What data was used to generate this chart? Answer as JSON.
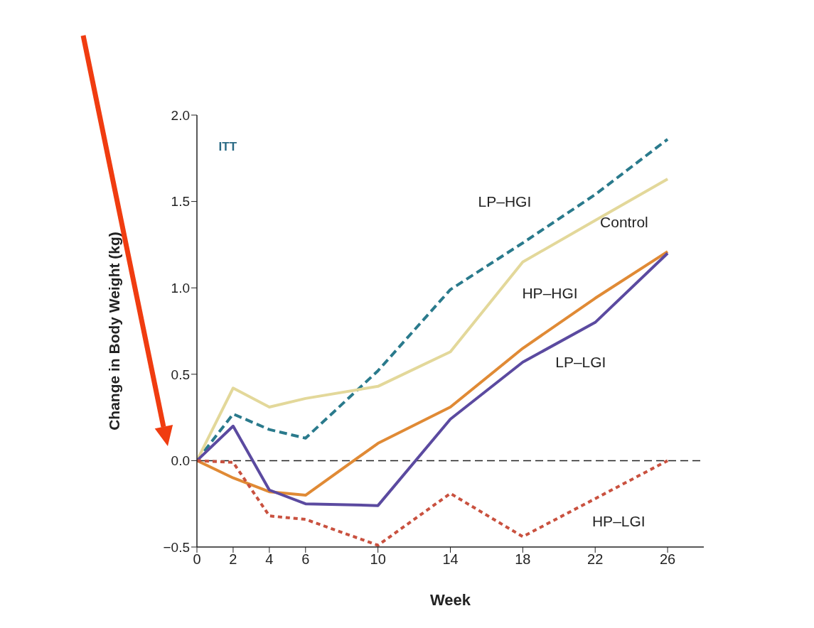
{
  "chart_data": {
    "type": "line",
    "xlabel": "Week",
    "ylabel": "Change in Body Weight (kg)",
    "annotations": [
      "ITT"
    ],
    "x": [
      0,
      2,
      4,
      6,
      10,
      14,
      18,
      22,
      26
    ],
    "xlim": [
      0,
      28
    ],
    "xticks": [
      0,
      2,
      4,
      6,
      10,
      14,
      18,
      22,
      26
    ],
    "ylim": [
      -0.5,
      2.0
    ],
    "yticks": [
      {
        "value": -0.5,
        "label": "−0.5"
      },
      {
        "value": 0,
        "label": "0.0"
      },
      0.5,
      {
        "value": 1,
        "label": "1.0"
      },
      1.5,
      {
        "value": 2,
        "label": "2.0"
      }
    ],
    "grid": false,
    "legend": false,
    "marker": "none",
    "ref_lines": [
      {
        "axis": "y",
        "value": 0,
        "color": "#222222",
        "line_style": "dashed"
      }
    ],
    "series": [
      {
        "name": "LP–HGI",
        "color": "#2a7a8c",
        "line_style": "dashed",
        "values": [
          0,
          0.27,
          0.18,
          0.13,
          0.52,
          0.99,
          1.26,
          1.54,
          1.86
        ]
      },
      {
        "name": "Control",
        "color": "#e3d89a",
        "line_style": "solid",
        "values": [
          0,
          0.42,
          0.31,
          0.36,
          0.43,
          0.63,
          1.15,
          1.39,
          1.63
        ]
      },
      {
        "name": "HP–HGI",
        "color": "#e08a35",
        "line_style": "solid",
        "values": [
          0,
          -0.1,
          -0.18,
          -0.2,
          0.1,
          0.31,
          0.65,
          0.94,
          1.21
        ]
      },
      {
        "name": "LP–LGI",
        "color": "#5b4aa0",
        "line_style": "solid",
        "values": [
          0,
          0.2,
          -0.17,
          -0.25,
          -0.26,
          0.24,
          0.57,
          0.8,
          1.2
        ]
      },
      {
        "name": "HP–LGI",
        "color": "#c9513f",
        "line_style": "dotted",
        "values": [
          0,
          -0.01,
          -0.32,
          -0.34,
          -0.49,
          -0.19,
          -0.44,
          -0.22,
          0
        ]
      }
    ]
  }
}
